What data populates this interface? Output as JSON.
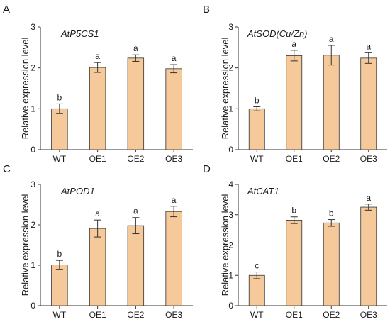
{
  "style": {
    "bar_color": "#f6c99a",
    "axis_color": "#333333"
  },
  "chart_data": [
    {
      "type": "bar",
      "panel": "A",
      "title": "AtP5CS1",
      "ylabel": "Relative expression level",
      "categories": [
        "WT",
        "OE1",
        "OE2",
        "OE3"
      ],
      "values": [
        1.0,
        2.01,
        2.24,
        1.98
      ],
      "errors": [
        0.12,
        0.12,
        0.08,
        0.1
      ],
      "labels": [
        "b",
        "a",
        "a",
        "a"
      ],
      "ylim": [
        0,
        3
      ],
      "yticks": [
        0,
        1,
        2,
        3
      ]
    },
    {
      "type": "bar",
      "panel": "B",
      "title": "AtSOD(Cu/Zn)",
      "ylabel": "Relative expression level",
      "categories": [
        "WT",
        "OE1",
        "OE2",
        "OE3"
      ],
      "values": [
        1.0,
        2.3,
        2.31,
        2.24
      ],
      "errors": [
        0.05,
        0.13,
        0.24,
        0.13
      ],
      "labels": [
        "b",
        "a",
        "a",
        "a"
      ],
      "ylim": [
        0,
        3
      ],
      "yticks": [
        0,
        1,
        2,
        3
      ]
    },
    {
      "type": "bar",
      "panel": "C",
      "title": "AtPOD1",
      "ylabel": "Relative expression level",
      "categories": [
        "WT",
        "OE1",
        "OE2",
        "OE3"
      ],
      "values": [
        1.01,
        1.91,
        1.98,
        2.33
      ],
      "errors": [
        0.11,
        0.21,
        0.2,
        0.13
      ],
      "labels": [
        "b",
        "a",
        "a",
        "a"
      ],
      "ylim": [
        0,
        3
      ],
      "yticks": [
        0,
        1,
        2,
        3
      ]
    },
    {
      "type": "bar",
      "panel": "D",
      "title": "AtCAT1",
      "ylabel": "Relative expression level",
      "categories": [
        "WT",
        "OE1",
        "OE2",
        "OE3"
      ],
      "values": [
        1.0,
        2.82,
        2.73,
        3.25
      ],
      "errors": [
        0.11,
        0.11,
        0.11,
        0.1
      ],
      "labels": [
        "c",
        "b",
        "b",
        "a"
      ],
      "ylim": [
        0,
        4
      ],
      "yticks": [
        0,
        1,
        2,
        3,
        4
      ]
    }
  ]
}
